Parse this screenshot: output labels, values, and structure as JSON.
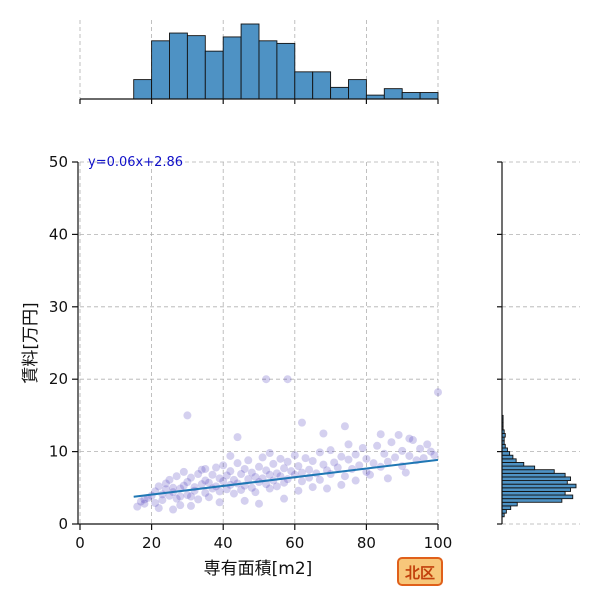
{
  "chart_data": {
    "type": "scatter",
    "xlabel": "専有面積[m2]",
    "ylabel": "賃料[万円]",
    "xlim": [
      0,
      100
    ],
    "ylim": [
      0,
      50
    ],
    "x_ticks": [
      0,
      20,
      40,
      60,
      80,
      100
    ],
    "y_ticks": [
      0,
      10,
      20,
      30,
      40,
      50
    ],
    "grid": true,
    "annotation": "y=0.06x+2.86",
    "badge": "北区",
    "regression": {
      "slope": 0.06,
      "intercept": 2.86,
      "x_range": [
        15,
        100
      ]
    },
    "top_histogram": {
      "bin_edges": [
        15,
        20,
        25,
        30,
        35,
        40,
        45,
        50,
        55,
        60,
        65,
        70,
        75,
        80,
        85,
        90,
        95,
        100
      ],
      "counts": [
        15,
        45,
        51,
        49,
        37,
        48,
        58,
        45,
        43,
        21,
        21,
        9,
        15,
        3,
        8,
        5,
        5
      ]
    },
    "right_histogram": {
      "bin_edges": [
        1,
        1.5,
        2,
        2.5,
        3,
        3.5,
        4,
        4.5,
        5,
        5.5,
        6,
        6.5,
        7,
        7.5,
        8,
        8.5,
        9,
        9.5,
        10,
        10.5,
        11,
        11.5,
        12,
        12.5,
        13,
        13.5,
        14,
        14.5,
        15
      ],
      "counts": [
        2,
        4,
        8,
        14,
        55,
        65,
        58,
        63,
        68,
        60,
        63,
        58,
        48,
        30,
        20,
        13,
        10,
        7,
        5,
        3,
        2,
        2,
        3,
        2,
        1,
        1,
        1,
        1
      ]
    },
    "points": [
      [
        16,
        2.4
      ],
      [
        17,
        3.1
      ],
      [
        18,
        2.8
      ],
      [
        19,
        3.6
      ],
      [
        20,
        3.9
      ],
      [
        21,
        4.5
      ],
      [
        21,
        2.9
      ],
      [
        22,
        5.2
      ],
      [
        23,
        4.1
      ],
      [
        23,
        3.3
      ],
      [
        24,
        5.6
      ],
      [
        24,
        4.8
      ],
      [
        25,
        3.9
      ],
      [
        25,
        6.1
      ],
      [
        26,
        4.4
      ],
      [
        26,
        5.0
      ],
      [
        27,
        3.5
      ],
      [
        27,
        6.6
      ],
      [
        28,
        4.9
      ],
      [
        28,
        2.6
      ],
      [
        29,
        5.3
      ],
      [
        29,
        7.2
      ],
      [
        30,
        4.0
      ],
      [
        30,
        5.8
      ],
      [
        31,
        3.8
      ],
      [
        31,
        6.4
      ],
      [
        32,
        5.1
      ],
      [
        32,
        4.6
      ],
      [
        33,
        6.9
      ],
      [
        33,
        3.4
      ],
      [
        34,
        5.5
      ],
      [
        34,
        7.5
      ],
      [
        35,
        4.3
      ],
      [
        35,
        6.0
      ],
      [
        36,
        5.7
      ],
      [
        36,
        3.7
      ],
      [
        37,
        6.8
      ],
      [
        37,
        4.9
      ],
      [
        38,
        5.2
      ],
      [
        38,
        7.8
      ],
      [
        39,
        6.3
      ],
      [
        39,
        4.5
      ],
      [
        40,
        5.9
      ],
      [
        40,
        8.1
      ],
      [
        41,
        4.8
      ],
      [
        41,
        6.7
      ],
      [
        42,
        5.4
      ],
      [
        42,
        7.3
      ],
      [
        43,
        6.1
      ],
      [
        43,
        4.2
      ],
      [
        44,
        8.4
      ],
      [
        44,
        5.6
      ],
      [
        45,
        6.9
      ],
      [
        45,
        4.7
      ],
      [
        46,
        7.6
      ],
      [
        46,
        5.3
      ],
      [
        47,
        6.2
      ],
      [
        47,
        8.8
      ],
      [
        48,
        5.0
      ],
      [
        48,
        7.1
      ],
      [
        49,
        6.5
      ],
      [
        49,
        4.4
      ],
      [
        50,
        7.9
      ],
      [
        50,
        5.8
      ],
      [
        51,
        6.3
      ],
      [
        51,
        9.2
      ],
      [
        52,
        5.5
      ],
      [
        52,
        7.4
      ],
      [
        53,
        6.8
      ],
      [
        53,
        4.9
      ],
      [
        54,
        8.3
      ],
      [
        54,
        6.0
      ],
      [
        55,
        7.0
      ],
      [
        55,
        5.2
      ],
      [
        56,
        9.0
      ],
      [
        56,
        6.6
      ],
      [
        57,
        7.7
      ],
      [
        57,
        5.7
      ],
      [
        58,
        8.6
      ],
      [
        58,
        6.2
      ],
      [
        59,
        7.3
      ],
      [
        60,
        9.5
      ],
      [
        60,
        6.8
      ],
      [
        61,
        8.0
      ],
      [
        62,
        7.1
      ],
      [
        62,
        5.9
      ],
      [
        63,
        9.1
      ],
      [
        64,
        7.5
      ],
      [
        64,
        6.4
      ],
      [
        65,
        8.7
      ],
      [
        66,
        7.0
      ],
      [
        67,
        9.9
      ],
      [
        67,
        6.1
      ],
      [
        68,
        8.2
      ],
      [
        69,
        7.4
      ],
      [
        70,
        10.2
      ],
      [
        70,
        6.9
      ],
      [
        71,
        8.5
      ],
      [
        72,
        7.8
      ],
      [
        73,
        9.3
      ],
      [
        74,
        6.6
      ],
      [
        75,
        8.9
      ],
      [
        75,
        11.0
      ],
      [
        76,
        7.6
      ],
      [
        77,
        9.6
      ],
      [
        78,
        8.1
      ],
      [
        79,
        10.5
      ],
      [
        80,
        7.2
      ],
      [
        80,
        9.0
      ],
      [
        82,
        8.4
      ],
      [
        83,
        10.8
      ],
      [
        84,
        7.9
      ],
      [
        85,
        9.7
      ],
      [
        86,
        8.6
      ],
      [
        87,
        11.3
      ],
      [
        88,
        9.2
      ],
      [
        89,
        12.3
      ],
      [
        90,
        8.0
      ],
      [
        90,
        10.1
      ],
      [
        92,
        9.4
      ],
      [
        93,
        11.6
      ],
      [
        94,
        8.8
      ],
      [
        95,
        10.4
      ],
      [
        96,
        9.1
      ],
      [
        97,
        11.0
      ],
      [
        98,
        10.0
      ],
      [
        99,
        9.5
      ],
      [
        100,
        18.2
      ],
      [
        30,
        15.0
      ],
      [
        44,
        12.0
      ],
      [
        52,
        20.0
      ],
      [
        58,
        20.0
      ],
      [
        62,
        14.0
      ],
      [
        68,
        12.5
      ],
      [
        74,
        13.5
      ],
      [
        84,
        12.4
      ],
      [
        92,
        11.8
      ],
      [
        18,
        3.4
      ],
      [
        22,
        2.2
      ],
      [
        26,
        2.0
      ],
      [
        28,
        3.8
      ],
      [
        31,
        2.5
      ],
      [
        35,
        7.6
      ],
      [
        39,
        3.0
      ],
      [
        42,
        9.4
      ],
      [
        46,
        3.2
      ],
      [
        50,
        2.8
      ],
      [
        53,
        9.8
      ],
      [
        57,
        3.5
      ],
      [
        61,
        4.6
      ],
      [
        65,
        5.1
      ],
      [
        69,
        4.9
      ],
      [
        73,
        5.4
      ],
      [
        77,
        6.0
      ],
      [
        81,
        6.8
      ],
      [
        86,
        6.3
      ],
      [
        91,
        7.1
      ]
    ]
  }
}
